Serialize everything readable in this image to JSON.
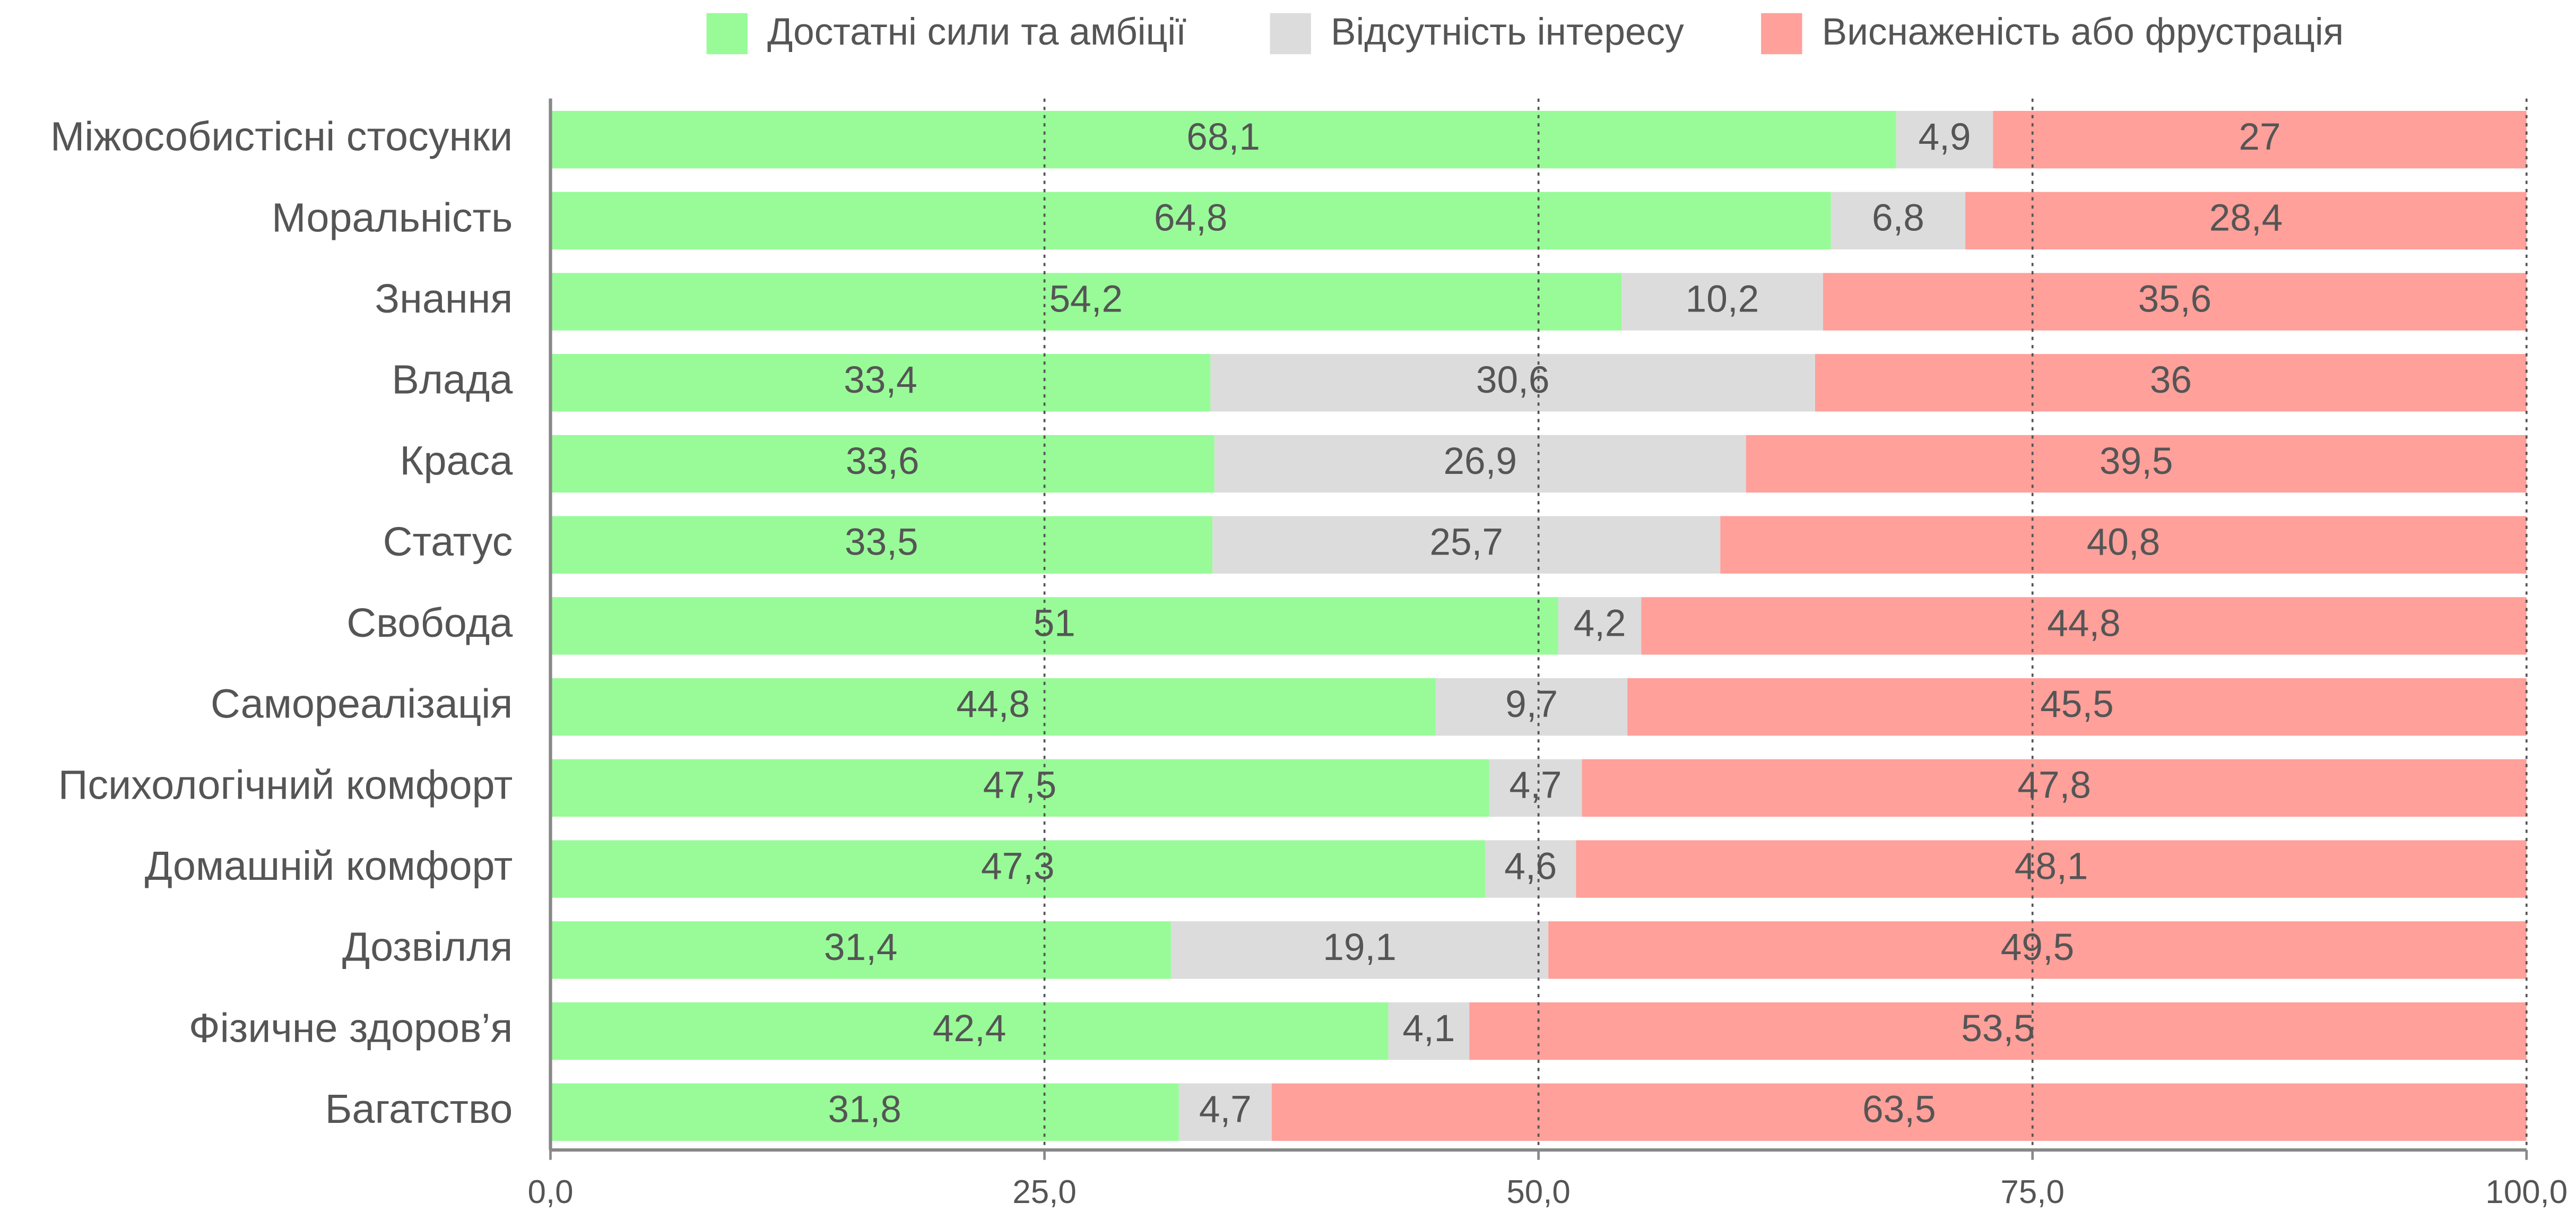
{
  "chart_data": {
    "type": "stacked-barh",
    "categories": [
      "Міжособистісні стосунки",
      "Моральність",
      "Знання",
      "Влада",
      "Краса",
      "Статус",
      "Свобода",
      "Самореалізація",
      "Психологічний комфорт",
      "Домашній комфорт",
      "Дозвілля",
      "Фізичне здоров’я",
      "Багатство"
    ],
    "series": [
      {
        "name": "Достатні сили та амбіції",
        "color": "#98fb98",
        "values": [
          68.1,
          64.8,
          54.2,
          33.4,
          33.6,
          33.5,
          51,
          44.8,
          47.5,
          47.3,
          31.4,
          42.4,
          31.8
        ],
        "value_labels": [
          "68,1",
          "64,8",
          "54,2",
          "33,4",
          "33,6",
          "33,5",
          "51",
          "44,8",
          "47,5",
          "47,3",
          "31,4",
          "42,4",
          "31,8"
        ]
      },
      {
        "name": "Відсутність інтересу",
        "color": "#dcdcdc",
        "values": [
          4.9,
          6.8,
          10.2,
          30.6,
          26.9,
          25.7,
          4.2,
          9.7,
          4.7,
          4.6,
          19.1,
          4.1,
          4.7
        ],
        "value_labels": [
          "4,9",
          "6,8",
          "10,2",
          "30,6",
          "26,9",
          "25,7",
          "4,2",
          "9,7",
          "4,7",
          "4,6",
          "19,1",
          "4,1",
          "4,7"
        ]
      },
      {
        "name": "Виснаженість або фрустрація",
        "color": "#ffa09a",
        "values": [
          27,
          28.4,
          35.6,
          36,
          39.5,
          40.8,
          44.8,
          45.5,
          47.8,
          48.1,
          49.5,
          53.5,
          63.5
        ],
        "value_labels": [
          "27",
          "28,4",
          "35,6",
          "36",
          "39,5",
          "40,8",
          "44,8",
          "45,5",
          "47,8",
          "48,1",
          "49,5",
          "53,5",
          "63,5"
        ]
      }
    ],
    "xlim": [
      0,
      100
    ],
    "xticks": [
      {
        "value": 0,
        "label": "0,0"
      },
      {
        "value": 25,
        "label": "25,0"
      },
      {
        "value": 50,
        "label": "50,0"
      },
      {
        "value": 75,
        "label": "75,0"
      },
      {
        "value": 100,
        "label": "100,0"
      }
    ],
    "grid": true,
    "legend": "top"
  }
}
